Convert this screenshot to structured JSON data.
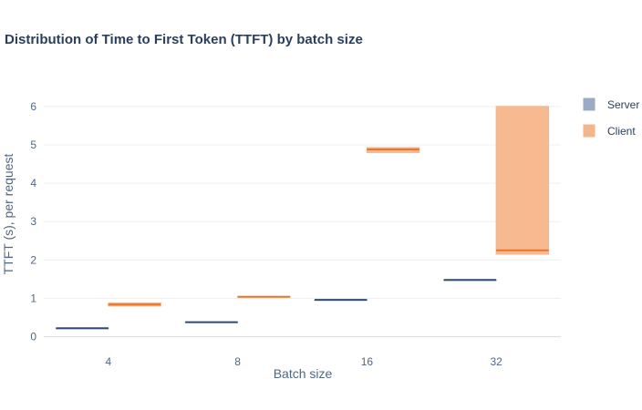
{
  "chart_data": {
    "type": "box",
    "title": "Distribution of Time to First Token (TTFT) by batch size",
    "xlabel": "Batch size",
    "ylabel": "TTFT (s), per request",
    "categories": [
      "4",
      "8",
      "16",
      "32"
    ],
    "ylim": [
      -0.2,
      6.4
    ],
    "yticks": [
      0,
      1,
      2,
      3,
      4,
      5,
      6
    ],
    "grid": true,
    "legend_position": "top-right",
    "series": [
      {
        "name": "Server",
        "fill": "#9aabc3",
        "line": "#2f4b73",
        "boxes": [
          {
            "min": 0.22,
            "q1": 0.22,
            "median": 0.22,
            "q3": 0.22,
            "max": 0.22
          },
          {
            "min": 0.38,
            "q1": 0.38,
            "median": 0.38,
            "q3": 0.38,
            "max": 0.38
          },
          {
            "min": 0.96,
            "q1": 0.96,
            "median": 0.96,
            "q3": 0.96,
            "max": 0.96
          },
          {
            "min": 1.48,
            "q1": 1.48,
            "median": 1.48,
            "q3": 1.48,
            "max": 1.48
          }
        ]
      },
      {
        "name": "Client",
        "fill": "#f5b58a",
        "line": "#e8762c",
        "boxes": [
          {
            "min": 0.8,
            "q1": 0.8,
            "median": 0.84,
            "q3": 0.88,
            "max": 0.88
          },
          {
            "min": 1.03,
            "q1": 1.03,
            "median": 1.04,
            "q3": 1.05,
            "max": 1.05
          },
          {
            "min": 4.8,
            "q1": 4.8,
            "median": 4.88,
            "q3": 4.93,
            "max": 4.93
          },
          {
            "min": 2.15,
            "q1": 2.15,
            "median": 2.25,
            "q3": 6.0,
            "max": 6.0
          }
        ]
      }
    ]
  }
}
